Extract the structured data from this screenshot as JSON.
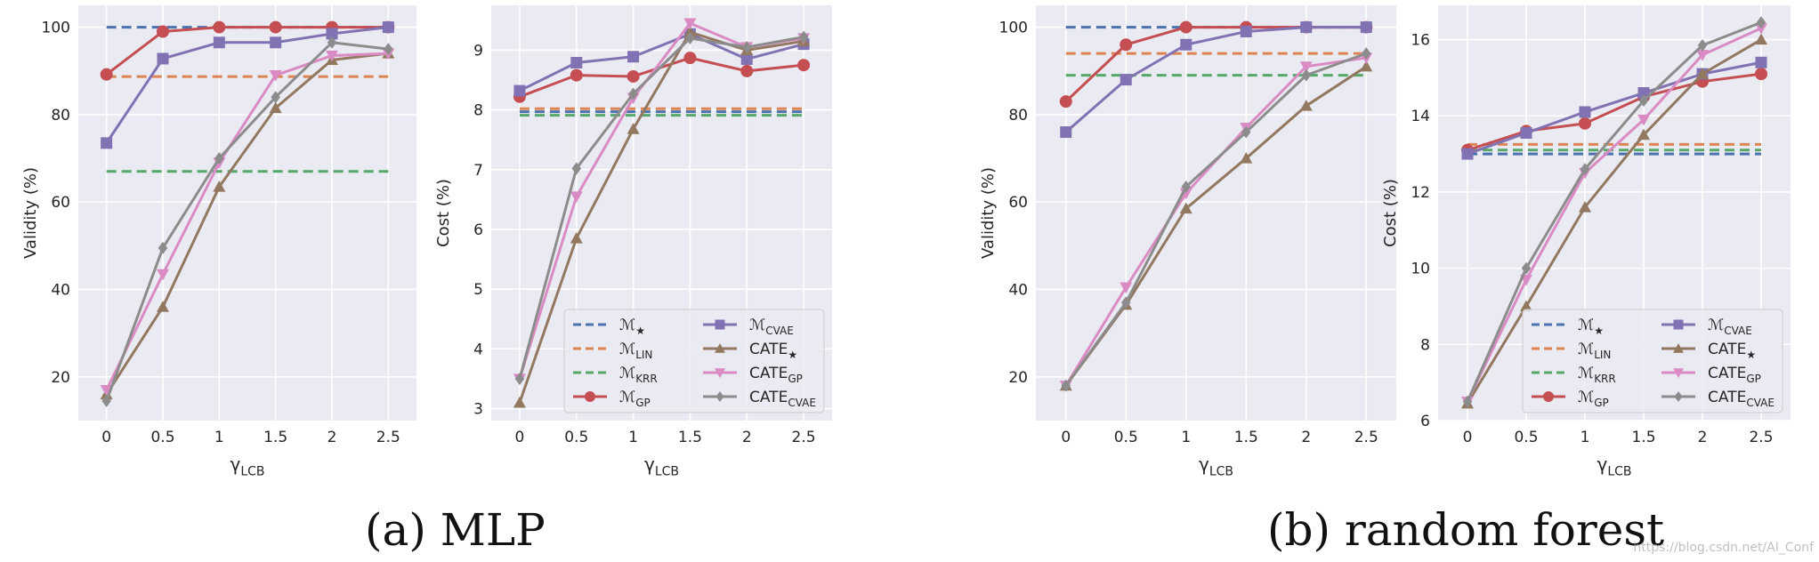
{
  "captions": {
    "a": "(a) MLP",
    "b": "(b) random forest"
  },
  "watermark": "https://blog.csdn.net/AI_Conf",
  "colors": {
    "star": "#4c72b0",
    "lin": "#dd8452",
    "krr": "#55a868",
    "gp": "#c44e52",
    "cvae": "#8172b3",
    "cate_star": "#937860",
    "cate_gp": "#da8bc3",
    "cate_cvae": "#8c8c8c",
    "axes_bg": "#eaeaf2",
    "grid": "#ffffff",
    "text": "#262626"
  },
  "legend": {
    "left_col": [
      {
        "key": "star",
        "main": "ℳ",
        "sub": "★",
        "style": "dashed"
      },
      {
        "key": "lin",
        "main": "ℳ",
        "sub": "LIN",
        "style": "dashed"
      },
      {
        "key": "krr",
        "main": "ℳ",
        "sub": "KRR",
        "style": "dashed"
      },
      {
        "key": "gp",
        "main": "ℳ",
        "sub": "GP",
        "style": "line",
        "marker": "circle"
      }
    ],
    "right_col": [
      {
        "key": "cvae",
        "main": "ℳ",
        "sub": "CVAE",
        "style": "line",
        "marker": "square"
      },
      {
        "key": "cate_star",
        "main": "CATE",
        "sub": "★",
        "style": "line",
        "marker": "triangle-up"
      },
      {
        "key": "cate_gp",
        "main": "CATE",
        "sub": "GP",
        "style": "line",
        "marker": "triangle-down"
      },
      {
        "key": "cate_cvae",
        "main": "CATE",
        "sub": "CVAE",
        "style": "line",
        "marker": "diamond"
      }
    ]
  },
  "chart_data": [
    {
      "id": "mlp-validity",
      "type": "line",
      "xlabel_main": "γ",
      "xlabel_sub": "LCB",
      "ylabel": "Validity (%)",
      "xlim": [
        -0.25,
        2.75
      ],
      "ylim": [
        10,
        105
      ],
      "x": [
        0,
        0.5,
        1,
        1.5,
        2,
        2.5
      ],
      "xticks": [
        "0",
        "0.5",
        "1",
        "1.5",
        "2",
        "2.5"
      ],
      "yticks": [
        20,
        40,
        60,
        80,
        100
      ],
      "legend": false,
      "series": [
        {
          "key": "star",
          "values": [
            100,
            100,
            100,
            100,
            100,
            100
          ]
        },
        {
          "key": "lin",
          "values": [
            88.7,
            88.7,
            88.7,
            88.7,
            88.7,
            88.7
          ]
        },
        {
          "key": "krr",
          "values": [
            67,
            67,
            67,
            67,
            67,
            67
          ]
        },
        {
          "key": "gp",
          "values": [
            89.2,
            99,
            100,
            100,
            100,
            100
          ]
        },
        {
          "key": "cvae",
          "values": [
            73.5,
            92.8,
            96.5,
            96.5,
            98.5,
            100
          ]
        },
        {
          "key": "cate_star",
          "values": [
            16,
            36,
            63.5,
            81.5,
            92.5,
            94
          ]
        },
        {
          "key": "cate_gp",
          "values": [
            17,
            43.5,
            69,
            89,
            93.5,
            94
          ]
        },
        {
          "key": "cate_cvae",
          "values": [
            14.5,
            49.5,
            70,
            84,
            96.5,
            95
          ]
        }
      ]
    },
    {
      "id": "mlp-cost",
      "type": "line",
      "xlabel_main": "γ",
      "xlabel_sub": "LCB",
      "ylabel": "Cost (%)",
      "xlim": [
        -0.25,
        2.75
      ],
      "ylim": [
        2.8,
        9.75
      ],
      "x": [
        0,
        0.5,
        1,
        1.5,
        2,
        2.5
      ],
      "xticks": [
        "0",
        "0.5",
        "1",
        "1.5",
        "2",
        "2.5"
      ],
      "yticks": [
        3,
        4,
        5,
        6,
        7,
        8,
        9
      ],
      "legend": true,
      "series": [
        {
          "key": "star",
          "values": [
            7.97,
            7.97,
            7.97,
            7.97,
            7.97,
            7.97
          ]
        },
        {
          "key": "lin",
          "values": [
            8.02,
            8.02,
            8.02,
            8.02,
            8.02,
            8.02
          ]
        },
        {
          "key": "krr",
          "values": [
            7.91,
            7.91,
            7.91,
            7.91,
            7.91,
            7.91
          ]
        },
        {
          "key": "gp",
          "values": [
            8.22,
            8.58,
            8.56,
            8.87,
            8.65,
            8.75
          ]
        },
        {
          "key": "cvae",
          "values": [
            8.32,
            8.79,
            8.89,
            9.27,
            8.85,
            9.1
          ]
        },
        {
          "key": "cate_star",
          "values": [
            3.1,
            5.85,
            7.68,
            9.3,
            9.0,
            9.15
          ]
        },
        {
          "key": "cate_gp",
          "values": [
            3.5,
            6.55,
            8.2,
            9.45,
            9.05,
            9.2
          ]
        },
        {
          "key": "cate_cvae",
          "values": [
            3.5,
            7.02,
            8.27,
            9.2,
            9.05,
            9.22
          ]
        }
      ]
    },
    {
      "id": "rf-validity",
      "type": "line",
      "xlabel_main": "γ",
      "xlabel_sub": "LCB",
      "ylabel": "Validity (%)",
      "xlim": [
        -0.25,
        2.75
      ],
      "ylim": [
        10,
        105
      ],
      "x": [
        0,
        0.5,
        1,
        1.5,
        2,
        2.5
      ],
      "xticks": [
        "0",
        "0.5",
        "1",
        "1.5",
        "2",
        "2.5"
      ],
      "yticks": [
        20,
        40,
        60,
        80,
        100
      ],
      "legend": false,
      "series": [
        {
          "key": "star",
          "values": [
            100,
            100,
            100,
            100,
            100,
            100
          ]
        },
        {
          "key": "lin",
          "values": [
            94,
            94,
            94,
            94,
            94,
            94
          ]
        },
        {
          "key": "krr",
          "values": [
            89,
            89,
            89,
            89,
            89,
            89
          ]
        },
        {
          "key": "gp",
          "values": [
            83,
            96,
            100,
            100,
            100,
            100
          ]
        },
        {
          "key": "cvae",
          "values": [
            76,
            88,
            96,
            99,
            100,
            100
          ]
        },
        {
          "key": "cate_star",
          "values": [
            18,
            36.5,
            58.5,
            70,
            82,
            91
          ]
        },
        {
          "key": "cate_gp",
          "values": [
            18,
            40.5,
            62,
            77,
            91,
            93
          ]
        },
        {
          "key": "cate_cvae",
          "values": [
            18,
            37,
            63.5,
            76,
            89,
            94
          ]
        }
      ]
    },
    {
      "id": "rf-cost",
      "type": "line",
      "xlabel_main": "γ",
      "xlabel_sub": "LCB",
      "ylabel": "Cost (%)",
      "xlim": [
        -0.25,
        2.75
      ],
      "ylim": [
        6,
        16.9
      ],
      "x": [
        0,
        0.5,
        1,
        1.5,
        2,
        2.5
      ],
      "xticks": [
        "0",
        "0.5",
        "1",
        "1.5",
        "2",
        "2.5"
      ],
      "yticks": [
        6,
        8,
        10,
        12,
        14,
        16
      ],
      "legend": true,
      "series": [
        {
          "key": "star",
          "values": [
            13.0,
            13.0,
            13.0,
            13.0,
            13.0,
            13.0
          ]
        },
        {
          "key": "lin",
          "values": [
            13.25,
            13.25,
            13.25,
            13.25,
            13.25,
            13.25
          ]
        },
        {
          "key": "krr",
          "values": [
            13.1,
            13.1,
            13.1,
            13.1,
            13.1,
            13.1
          ]
        },
        {
          "key": "gp",
          "values": [
            13.1,
            13.6,
            13.8,
            14.5,
            14.9,
            15.1
          ]
        },
        {
          "key": "cvae",
          "values": [
            13.0,
            13.55,
            14.1,
            14.6,
            15.1,
            15.4
          ]
        },
        {
          "key": "cate_star",
          "values": [
            6.45,
            9.0,
            11.6,
            13.5,
            15.1,
            16.0
          ]
        },
        {
          "key": "cate_gp",
          "values": [
            6.5,
            9.7,
            12.5,
            13.9,
            15.6,
            16.3
          ]
        },
        {
          "key": "cate_cvae",
          "values": [
            6.5,
            10.0,
            12.6,
            14.4,
            15.85,
            16.45
          ]
        }
      ]
    }
  ]
}
